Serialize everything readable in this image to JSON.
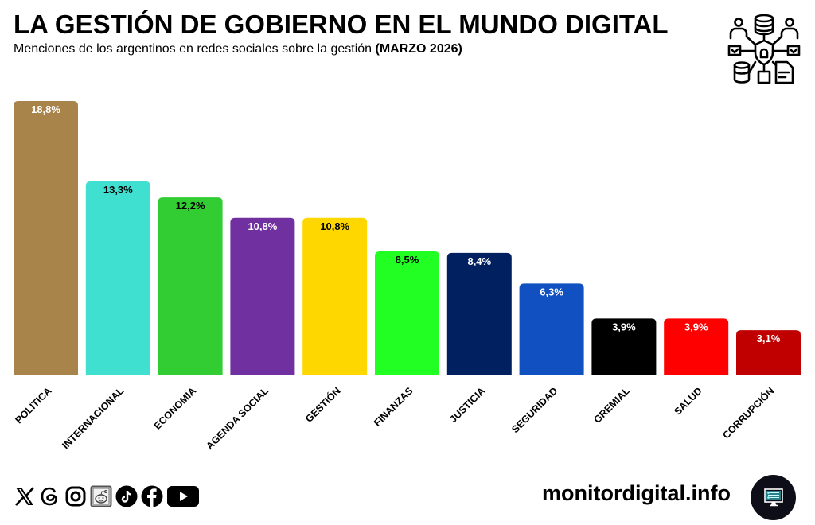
{
  "header": {
    "title": "LA GESTIÓN DE GOBIERNO EN EL MUNDO DIGITAL",
    "subtitle": "Menciones de los argentinos en redes sociales sobre la gestión",
    "subtitle_bold": "(MARZO 2026)",
    "icon": "data-network-shield-icon"
  },
  "chart_data": {
    "type": "bar",
    "title": "LA GESTIÓN DE GOBIERNO EN EL MUNDO DIGITAL",
    "subtitle": "Menciones de los argentinos en redes sociales sobre la gestión (MARZO 2026)",
    "xlabel": "",
    "ylabel": "",
    "ylim": [
      0,
      18.8
    ],
    "grid": false,
    "unit": "%",
    "categories": [
      "POLÍTICA",
      "INTERNACIONAL",
      "ECONOMÍA",
      "AGENDA SOCIAL",
      "GESTIÓN",
      "FINANZAS",
      "JUSTICIA",
      "SEGURIDAD",
      "GREMIAL",
      "SALUD",
      "CORRUPCIÓN"
    ],
    "values": [
      18.8,
      13.3,
      12.2,
      10.8,
      10.8,
      8.5,
      8.4,
      6.3,
      3.9,
      3.9,
      3.1
    ],
    "data_labels": [
      "18,8%",
      "13,3%",
      "12,2%",
      "10,8%",
      "10,8%",
      "8,5%",
      "8,4%",
      "6,3%",
      "3,9%",
      "3,9%",
      "3,1%"
    ],
    "colors": [
      "#a8834a",
      "#40e0d0",
      "#32cd32",
      "#7030a0",
      "#ffd700",
      "#22ff22",
      "#002060",
      "#1050c0",
      "#000000",
      "#ff0000",
      "#c00000"
    ],
    "label_colors": [
      "#ffffff",
      "#000000",
      "#000000",
      "#ffffff",
      "#000000",
      "#000000",
      "#ffffff",
      "#ffffff",
      "#ffffff",
      "#ffffff",
      "#ffffff"
    ]
  },
  "footer": {
    "social_icons": [
      "x-icon",
      "threads-icon",
      "instagram-icon",
      "reddit-icon",
      "tiktok-icon",
      "facebook-icon",
      "youtube-icon"
    ],
    "site": "monitordigital.info",
    "site_logo": "monitor-computer-icon"
  }
}
